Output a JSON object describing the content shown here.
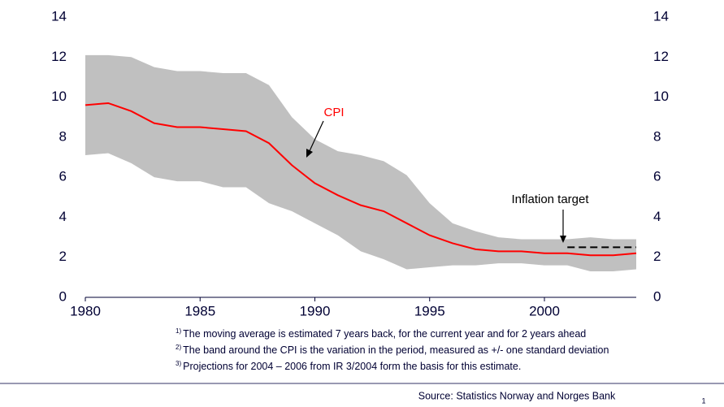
{
  "chart_data": {
    "type": "line",
    "x": [
      1980,
      1981,
      1982,
      1983,
      1984,
      1985,
      1986,
      1987,
      1988,
      1989,
      1990,
      1991,
      1992,
      1993,
      1994,
      1995,
      1996,
      1997,
      1998,
      1999,
      2000,
      2001,
      2002,
      2003,
      2004
    ],
    "series": [
      {
        "name": "CPI",
        "color": "#ff0000",
        "values": [
          9.6,
          9.7,
          9.3,
          8.7,
          8.5,
          8.5,
          8.4,
          8.3,
          7.7,
          6.6,
          5.7,
          5.1,
          4.6,
          4.3,
          3.7,
          3.1,
          2.7,
          2.4,
          2.3,
          2.3,
          2.2,
          2.2,
          2.1,
          2.1,
          2.2
        ]
      }
    ],
    "band": {
      "color": "#c0c0c0",
      "upper": [
        12.1,
        12.1,
        12.0,
        11.5,
        11.3,
        11.3,
        11.2,
        11.2,
        10.6,
        9.0,
        7.9,
        7.3,
        7.1,
        6.8,
        6.1,
        4.7,
        3.7,
        3.3,
        3.0,
        2.9,
        2.9,
        2.9,
        3.0,
        2.9,
        2.9
      ],
      "lower": [
        7.1,
        7.2,
        6.7,
        6.0,
        5.8,
        5.8,
        5.5,
        5.5,
        4.7,
        4.3,
        3.7,
        3.1,
        2.3,
        1.9,
        1.4,
        1.5,
        1.6,
        1.6,
        1.7,
        1.7,
        1.6,
        1.6,
        1.3,
        1.3,
        1.4
      ]
    },
    "target": {
      "label": "Inflation target",
      "value": 2.5,
      "x": [
        2001,
        2004
      ]
    },
    "xlim": [
      1980,
      2004
    ],
    "xticks": [
      1980,
      1985,
      1990,
      1995,
      2000
    ],
    "ylim": [
      0,
      14
    ],
    "yticks": [
      0,
      2,
      4,
      6,
      8,
      10,
      12,
      14
    ],
    "y2lim": [
      0,
      14
    ],
    "y2ticks": [
      0,
      2,
      4,
      6,
      8,
      10,
      12,
      14
    ],
    "footnotes": [
      {
        "marker": "1)",
        "text": "The moving average is estimated 7 years back, for the current year and for 2 years ahead"
      },
      {
        "marker": "2)",
        "text": "The band around the CPI is the variation in the period, measured as +/- one standard deviation"
      },
      {
        "marker": "3)",
        "text": "Projections for 2004 – 2006 from IR 3/2004 form the basis for this estimate."
      }
    ],
    "source": "Source: Statistics Norway and Norges Bank",
    "page_number": "1"
  }
}
